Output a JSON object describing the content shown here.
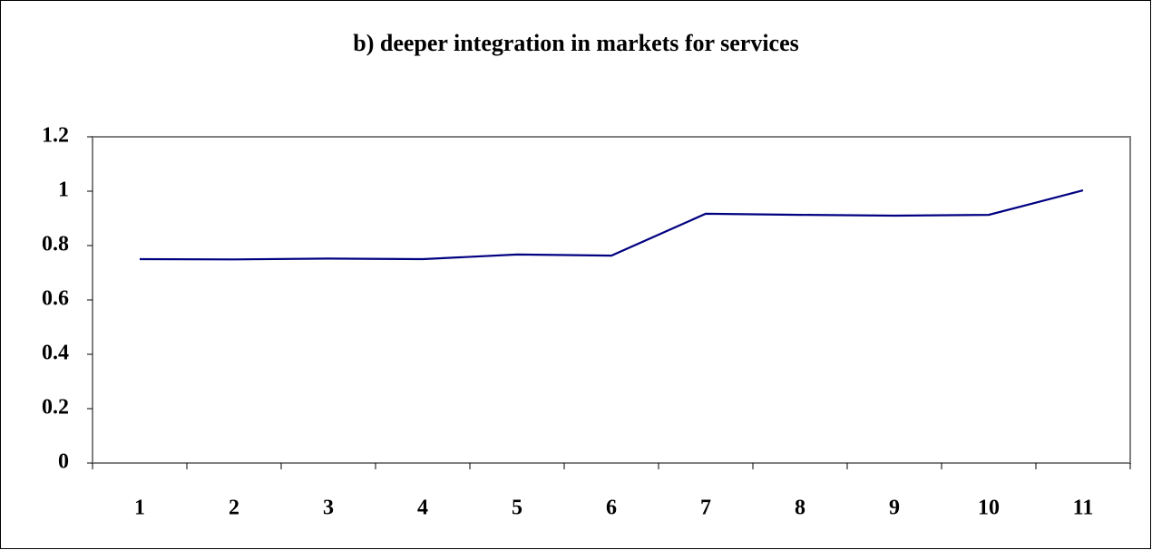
{
  "chart_data": {
    "type": "line",
    "title": "b) deeper integration in markets for services",
    "categories": [
      "1",
      "2",
      "3",
      "4",
      "5",
      "6",
      "7",
      "8",
      "9",
      "10",
      "11"
    ],
    "series": [
      {
        "name": null,
        "color": "#000080",
        "values": [
          0.75,
          0.749,
          0.752,
          0.75,
          0.767,
          0.763,
          0.917,
          0.913,
          0.91,
          0.913,
          1.003
        ]
      }
    ],
    "ylim": [
      0,
      1.2
    ],
    "yticks": [
      0,
      0.2,
      0.4,
      0.6,
      0.8,
      1,
      1.2
    ],
    "grid": false
  }
}
